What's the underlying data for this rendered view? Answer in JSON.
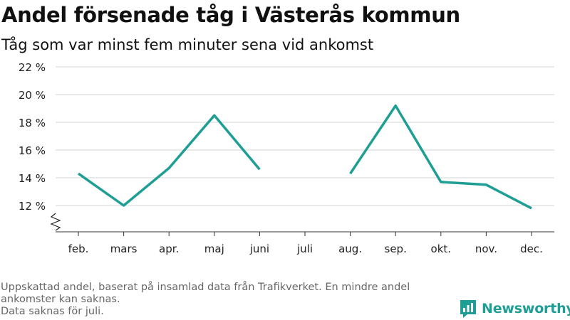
{
  "title": "Andel försenade tåg i Västerås kommun",
  "subtitle": "Tåg som var minst fem minuter sena vid ankomst",
  "footnote": {
    "line1": "Uppskattad andel, baserat på insamlad data från Trafikverket. En mindre andel",
    "line2": "ankomster kan saknas.",
    "line3": "Data saknas för juli."
  },
  "brand": {
    "name": "Newsworthy",
    "color": "#1e9e94"
  },
  "chart_data": {
    "type": "line",
    "title": "Andel försenade tåg i Västerås kommun",
    "subtitle": "Tåg som var minst fem minuter sena vid ankomst",
    "xlabel": "",
    "ylabel": "",
    "categories": [
      "feb.",
      "mars",
      "apr.",
      "maj",
      "juni",
      "juli",
      "aug.",
      "sep.",
      "okt.",
      "nov.",
      "dec."
    ],
    "series": [
      {
        "values": [
          14.3,
          12.0,
          14.7,
          18.5,
          14.6,
          null,
          14.3,
          19.2,
          13.7,
          13.5,
          11.8
        ],
        "color": "#1e9e94"
      }
    ],
    "yticks": [
      12,
      14,
      16,
      18,
      20,
      22
    ],
    "ytick_labels": [
      "12 %",
      "14 %",
      "16 %",
      "18 %",
      "20 %",
      "22 %"
    ],
    "ylim": [
      10.2,
      22
    ],
    "y_axis_break": true,
    "grid": true,
    "legend": "none"
  }
}
